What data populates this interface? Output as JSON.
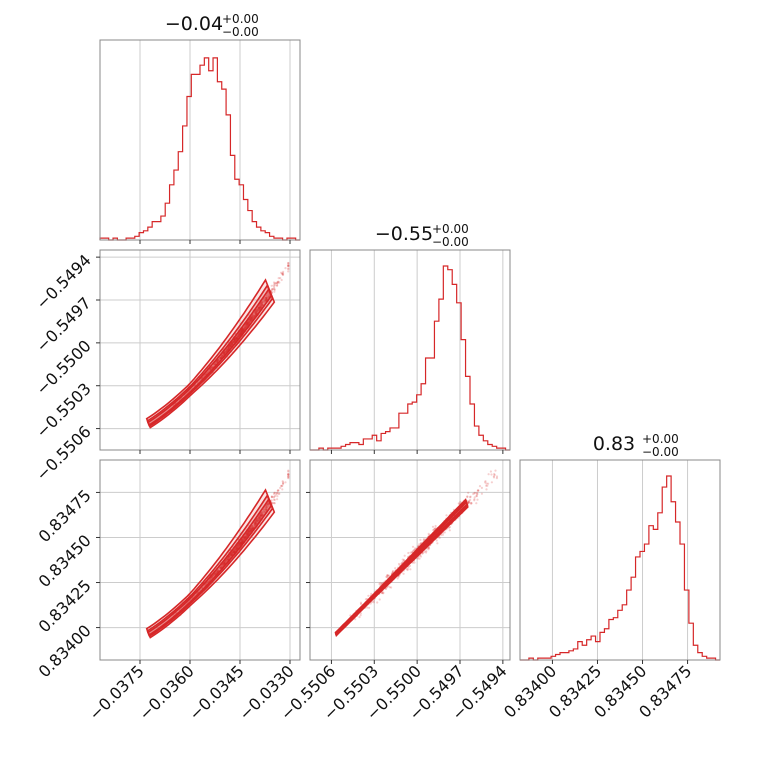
{
  "colors": {
    "series": "#d62728",
    "grid": "#cccccc",
    "frame": "#888888"
  },
  "chart_data": {
    "type": "corner",
    "variables": [
      {
        "title": {
          "value": "−0.04",
          "plus": "+0.00",
          "minus": "−0.00"
        },
        "range": [
          -0.0387,
          -0.0327
        ],
        "ticks": [
          -0.0375,
          -0.036,
          -0.0345,
          -0.033
        ],
        "tick_labels": [
          "−0.0375",
          "−0.0360",
          "−0.0345",
          "−0.0330"
        ],
        "histogram": [
          0.01,
          0.01,
          0.0,
          0.01,
          0.0,
          0.0,
          0.01,
          0.01,
          0.02,
          0.04,
          0.05,
          0.07,
          0.1,
          0.1,
          0.13,
          0.2,
          0.3,
          0.38,
          0.48,
          0.62,
          0.78,
          0.9,
          0.9,
          0.95,
          0.99,
          0.92,
          0.99,
          0.86,
          0.82,
          0.68,
          0.46,
          0.33,
          0.3,
          0.22,
          0.16,
          0.1,
          0.07,
          0.05,
          0.04,
          0.02,
          0.01,
          0.01,
          0.0,
          0.01,
          0.01,
          0.0
        ]
      },
      {
        "title": {
          "value": "−0.55",
          "plus": "+0.00",
          "minus": "−0.00"
        },
        "range": [
          -0.55075,
          -0.54935
        ],
        "ticks": [
          -0.5506,
          -0.5503,
          -0.55,
          -0.5497,
          -0.5494
        ],
        "tick_labels": [
          "−0.5506",
          "−0.5503",
          "−0.5500",
          "−0.5497",
          "−0.5494"
        ],
        "histogram": [
          0.0,
          0.0,
          0.01,
          0.0,
          0.01,
          0.01,
          0.01,
          0.02,
          0.03,
          0.04,
          0.04,
          0.03,
          0.06,
          0.06,
          0.08,
          0.05,
          0.09,
          0.1,
          0.12,
          0.12,
          0.2,
          0.2,
          0.25,
          0.26,
          0.3,
          0.36,
          0.5,
          0.5,
          0.7,
          0.82,
          1.0,
          0.98,
          0.9,
          0.8,
          0.6,
          0.4,
          0.25,
          0.13,
          0.08,
          0.05,
          0.03,
          0.02,
          0.01,
          0.01,
          0.0
        ]
      },
      {
        "title": {
          "value": "0.83",
          "plus": "+0.00",
          "minus": "−0.00"
        },
        "range": [
          0.83382,
          0.83493
        ],
        "ticks": [
          0.834,
          0.83425,
          0.8345,
          0.83475
        ],
        "tick_labels": [
          "0.83400",
          "0.83425",
          "0.83450",
          "0.83475"
        ],
        "histogram": [
          0.0,
          0.0,
          0.01,
          0.0,
          0.01,
          0.01,
          0.01,
          0.02,
          0.03,
          0.04,
          0.04,
          0.05,
          0.06,
          0.1,
          0.08,
          0.11,
          0.13,
          0.1,
          0.15,
          0.17,
          0.22,
          0.23,
          0.27,
          0.3,
          0.38,
          0.45,
          0.56,
          0.59,
          0.63,
          0.73,
          0.71,
          0.8,
          0.94,
          1.0,
          0.86,
          0.75,
          0.63,
          0.38,
          0.2,
          0.08,
          0.04,
          0.02,
          0.01,
          0.01,
          0.0
        ]
      }
    ]
  }
}
